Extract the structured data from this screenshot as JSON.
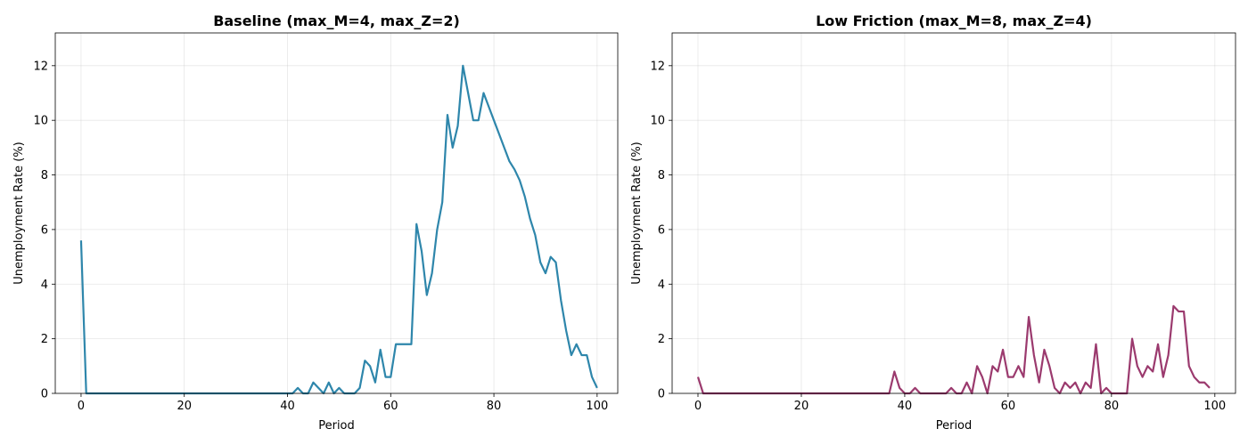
{
  "chart_data": [
    {
      "type": "line",
      "title": "Baseline (max_M=4, max_Z=2)",
      "xlabel": "Period",
      "ylabel": "Unemployment Rate (%)",
      "xlim": [
        -5,
        104
      ],
      "ylim": [
        0,
        13.2
      ],
      "xticks": [
        0,
        20,
        40,
        60,
        80,
        100
      ],
      "yticks": [
        0,
        2,
        4,
        6,
        8,
        10,
        12
      ],
      "grid": true,
      "color": "#2e86ab",
      "x_start": 0,
      "x_step": 1,
      "values": [
        5.6,
        0,
        0,
        0,
        0,
        0,
        0,
        0,
        0,
        0,
        0,
        0,
        0,
        0,
        0,
        0,
        0,
        0,
        0,
        0,
        0,
        0,
        0,
        0,
        0,
        0,
        0,
        0,
        0,
        0,
        0,
        0,
        0,
        0,
        0,
        0,
        0,
        0,
        0,
        0,
        0,
        0,
        0.2,
        0,
        0,
        0.4,
        0.2,
        0,
        0.4,
        0,
        0.2,
        0,
        0,
        0,
        0.2,
        1.2,
        1.0,
        0.4,
        1.6,
        0.6,
        0.6,
        1.8,
        1.8,
        1.8,
        1.8,
        6.2,
        5.2,
        3.6,
        4.4,
        6.0,
        7.0,
        10.2,
        9.0,
        9.8,
        12.0,
        11.0,
        10.0,
        10.0,
        11.0,
        10.5,
        10.0,
        9.5,
        9.0,
        8.5,
        8.2,
        7.8,
        7.2,
        6.4,
        5.8,
        4.8,
        4.4,
        5.0,
        4.8,
        3.4,
        2.3,
        1.4,
        1.8,
        1.4,
        1.4,
        0.6,
        0.2
      ]
    },
    {
      "type": "line",
      "title": "Low Friction (max_M=8, max_Z=4)",
      "xlabel": "Period",
      "ylabel": "Unemployment Rate (%)",
      "xlim": [
        -5,
        104
      ],
      "ylim": [
        0,
        13.2
      ],
      "xticks": [
        0,
        20,
        40,
        60,
        80,
        100
      ],
      "yticks": [
        0,
        2,
        4,
        6,
        8,
        10,
        12
      ],
      "grid": true,
      "color": "#9b3a6e",
      "x_start": 0,
      "x_step": 1,
      "values": [
        0.6,
        0,
        0,
        0,
        0,
        0,
        0,
        0,
        0,
        0,
        0,
        0,
        0,
        0,
        0,
        0,
        0,
        0,
        0,
        0,
        0,
        0,
        0,
        0,
        0,
        0,
        0,
        0,
        0,
        0,
        0,
        0,
        0,
        0,
        0,
        0,
        0,
        0,
        0.8,
        0.2,
        0,
        0,
        0.2,
        0,
        0,
        0,
        0,
        0,
        0,
        0.2,
        0,
        0,
        0.4,
        0,
        1.0,
        0.6,
        0,
        1.0,
        0.8,
        1.6,
        0.6,
        0.6,
        1.0,
        0.6,
        2.8,
        1.4,
        0.4,
        1.6,
        1.0,
        0.2,
        0,
        0.4,
        0.2,
        0.4,
        0,
        0.4,
        0.2,
        1.8,
        0,
        0.2,
        0,
        0,
        0,
        0,
        2.0,
        1.0,
        0.6,
        1.0,
        0.8,
        1.8,
        0.6,
        1.4,
        3.2,
        3.0,
        3.0,
        1.0,
        0.6,
        0.4,
        0.4,
        0.2
      ]
    }
  ]
}
